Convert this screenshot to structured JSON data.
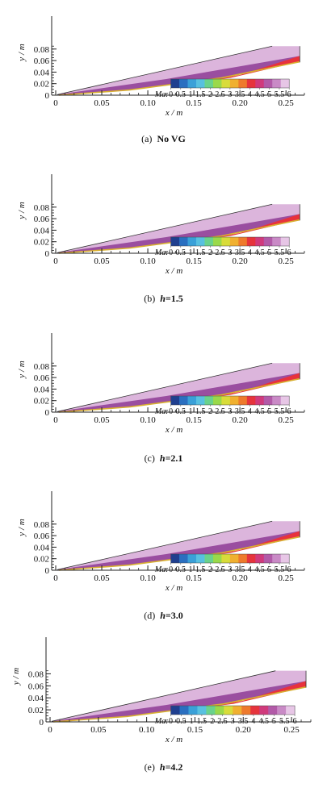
{
  "figure": {
    "colorbar_symbol": "Ma",
    "colorbar_ticks": [
      "0",
      "0.5",
      "1",
      "1.5",
      "2",
      "2.5",
      "3",
      "3.5",
      "4",
      "4.5",
      "5",
      "5.5",
      "6"
    ],
    "colorbar_colors": [
      "#1f3f8f",
      "#2a6fc0",
      "#3aa0d8",
      "#58c0e0",
      "#6ad28c",
      "#9ad94a",
      "#d8dc3a",
      "#f0b030",
      "#ee7a2c",
      "#e6343c",
      "#d03a7c",
      "#b25aa8",
      "#c98ac6",
      "#e7c6e6"
    ],
    "x_axis_label": "x / m",
    "y_axis_label": "y / m",
    "x_ticks": [
      "0",
      "0.05",
      "0.10",
      "0.15",
      "0.20",
      "0.25"
    ],
    "y_ticks": [
      "0",
      "0.02",
      "0.04",
      "0.06",
      "0.08"
    ],
    "colors": {
      "freestream": "#dcb5dc",
      "compression_layer": "#9a4ea0",
      "wall_layer": "#e8323c",
      "boundary_layer": "#d8b030",
      "outline": "#333333"
    }
  },
  "panels": [
    {
      "caption_prefix": "(a)",
      "caption_label": "No VG",
      "caption_eq": "",
      "caption_value": ""
    },
    {
      "caption_prefix": "(b)",
      "caption_label": "h",
      "caption_eq": "=",
      "caption_value": "1.5"
    },
    {
      "caption_prefix": "(c)",
      "caption_label": "h",
      "caption_eq": "=",
      "caption_value": "2.1"
    },
    {
      "caption_prefix": "(d)",
      "caption_label": "h",
      "caption_eq": "=",
      "caption_value": "3.0"
    },
    {
      "caption_prefix": "(e)",
      "caption_label": "h",
      "caption_eq": "=",
      "caption_value": "4.2"
    }
  ]
}
